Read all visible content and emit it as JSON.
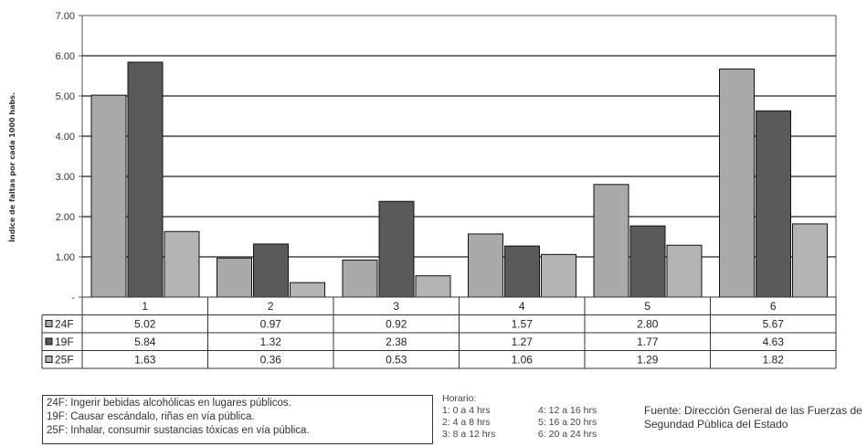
{
  "chart_data": {
    "type": "bar",
    "ylabel": "Índice de faltas por cada 1000 habs.",
    "ylim": [
      0,
      7
    ],
    "yticks": [
      "-",
      "1.00",
      "2.00",
      "3.00",
      "4.00",
      "5.00",
      "6.00",
      "7.00"
    ],
    "grid": true,
    "categories": [
      "1",
      "2",
      "3",
      "4",
      "5",
      "6"
    ],
    "series": [
      {
        "name": "24F",
        "color": "#a9a9a9",
        "values": [
          5.02,
          0.97,
          0.92,
          1.57,
          2.8,
          5.67
        ]
      },
      {
        "name": "19F",
        "color": "#5a5a5a",
        "values": [
          5.84,
          1.32,
          2.38,
          1.27,
          1.77,
          4.63
        ]
      },
      {
        "name": "25F",
        "color": "#b4b4b4",
        "values": [
          1.63,
          0.36,
          0.53,
          1.06,
          1.29,
          1.82
        ]
      }
    ],
    "table_values": [
      [
        "5.02",
        "0.97",
        "0.92",
        "1.57",
        "2.80",
        "5.67"
      ],
      [
        "5.84",
        "1.32",
        "2.38",
        "1.27",
        "1.77",
        "4.63"
      ],
      [
        "1.63",
        "0.36",
        "0.53",
        "1.06",
        "1.29",
        "1.82"
      ]
    ]
  },
  "legend_notes": [
    "24F: Ingerir bebidas alcohólicas en lugares públicos.",
    "19F: Causar escándalo, riñas en vía pública.",
    "25F: Inhalar, consumir sustancias tóxicas en vía pública."
  ],
  "horario": {
    "title": "Horario:",
    "items": [
      "1: 0 a 4 hrs",
      "4: 12 a 16 hrs",
      "2: 4 a 8 hrs",
      "5: 16 a 20 hrs",
      "3: 8 a 12 hrs",
      "6: 20 a 24 hrs"
    ]
  },
  "fuente": "Fuente: Dirección General de las Fuerzas de Segundad Pública del Estado"
}
